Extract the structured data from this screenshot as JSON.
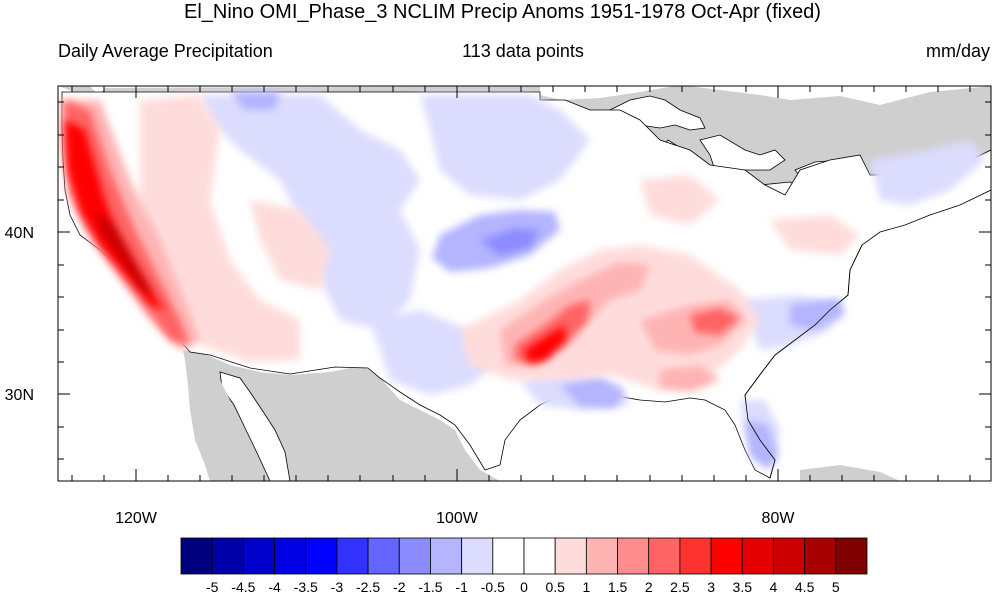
{
  "title": "El_Nino OMI_Phase_3 NCLIM Precip Anoms 1951-1978 Oct-Apr (fixed)",
  "subtitle_left": "Daily Average Precipitation",
  "subtitle_center": "113 data points",
  "subtitle_right": "mm/day",
  "lat_labels": [
    "40N",
    "30N"
  ],
  "lon_labels": [
    "120W",
    "100W",
    "80W"
  ],
  "colorbar": {
    "labels": [
      "-5",
      "-4.5",
      "-4",
      "-3.5",
      "-3",
      "-2.5",
      "-2",
      "-1.5",
      "-1",
      "-0.5",
      "0",
      "0.5",
      "1",
      "1.5",
      "2",
      "2.5",
      "3",
      "3.5",
      "4",
      "4.5",
      "5"
    ],
    "colors": [
      "#00007f",
      "#0000a8",
      "#0000cc",
      "#0000e5",
      "#0000ff",
      "#3232ff",
      "#6464ff",
      "#8c8cff",
      "#b4b4ff",
      "#dcdcff",
      "#ffffff",
      "#ffffff",
      "#ffdcdc",
      "#ffb4b4",
      "#ff8c8c",
      "#ff6464",
      "#ff3232",
      "#ff0000",
      "#e50000",
      "#cc0000",
      "#a80000",
      "#7f0000"
    ]
  },
  "colors": {
    "land_mask": "#cfcfcf",
    "coast": "#000000"
  }
}
